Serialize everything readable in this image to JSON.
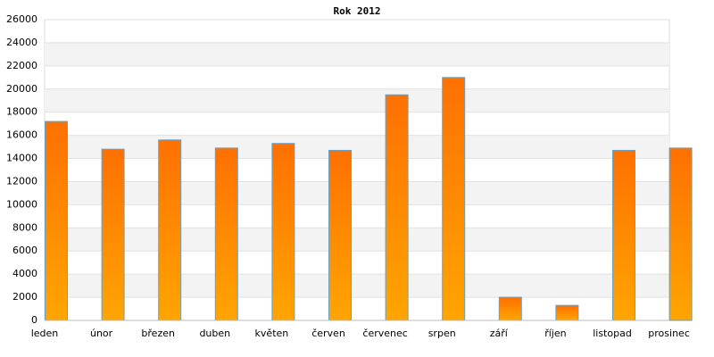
{
  "chart_data": {
    "type": "bar",
    "title": "Rok 2012",
    "categories": [
      "leden",
      "únor",
      "březen",
      "duben",
      "květen",
      "červen",
      "červenec",
      "srpen",
      "září",
      "říjen",
      "listopad",
      "prosinec"
    ],
    "values": [
      17200,
      14800,
      15600,
      14900,
      15300,
      14700,
      19500,
      21000,
      2000,
      1300,
      14700,
      14900
    ],
    "color": "#ff7700",
    "ylim": [
      0,
      26000
    ],
    "yticks": [
      0,
      2000,
      4000,
      6000,
      8000,
      10000,
      12000,
      14000,
      16000,
      18000,
      20000,
      22000,
      24000,
      26000
    ],
    "grid": true
  }
}
